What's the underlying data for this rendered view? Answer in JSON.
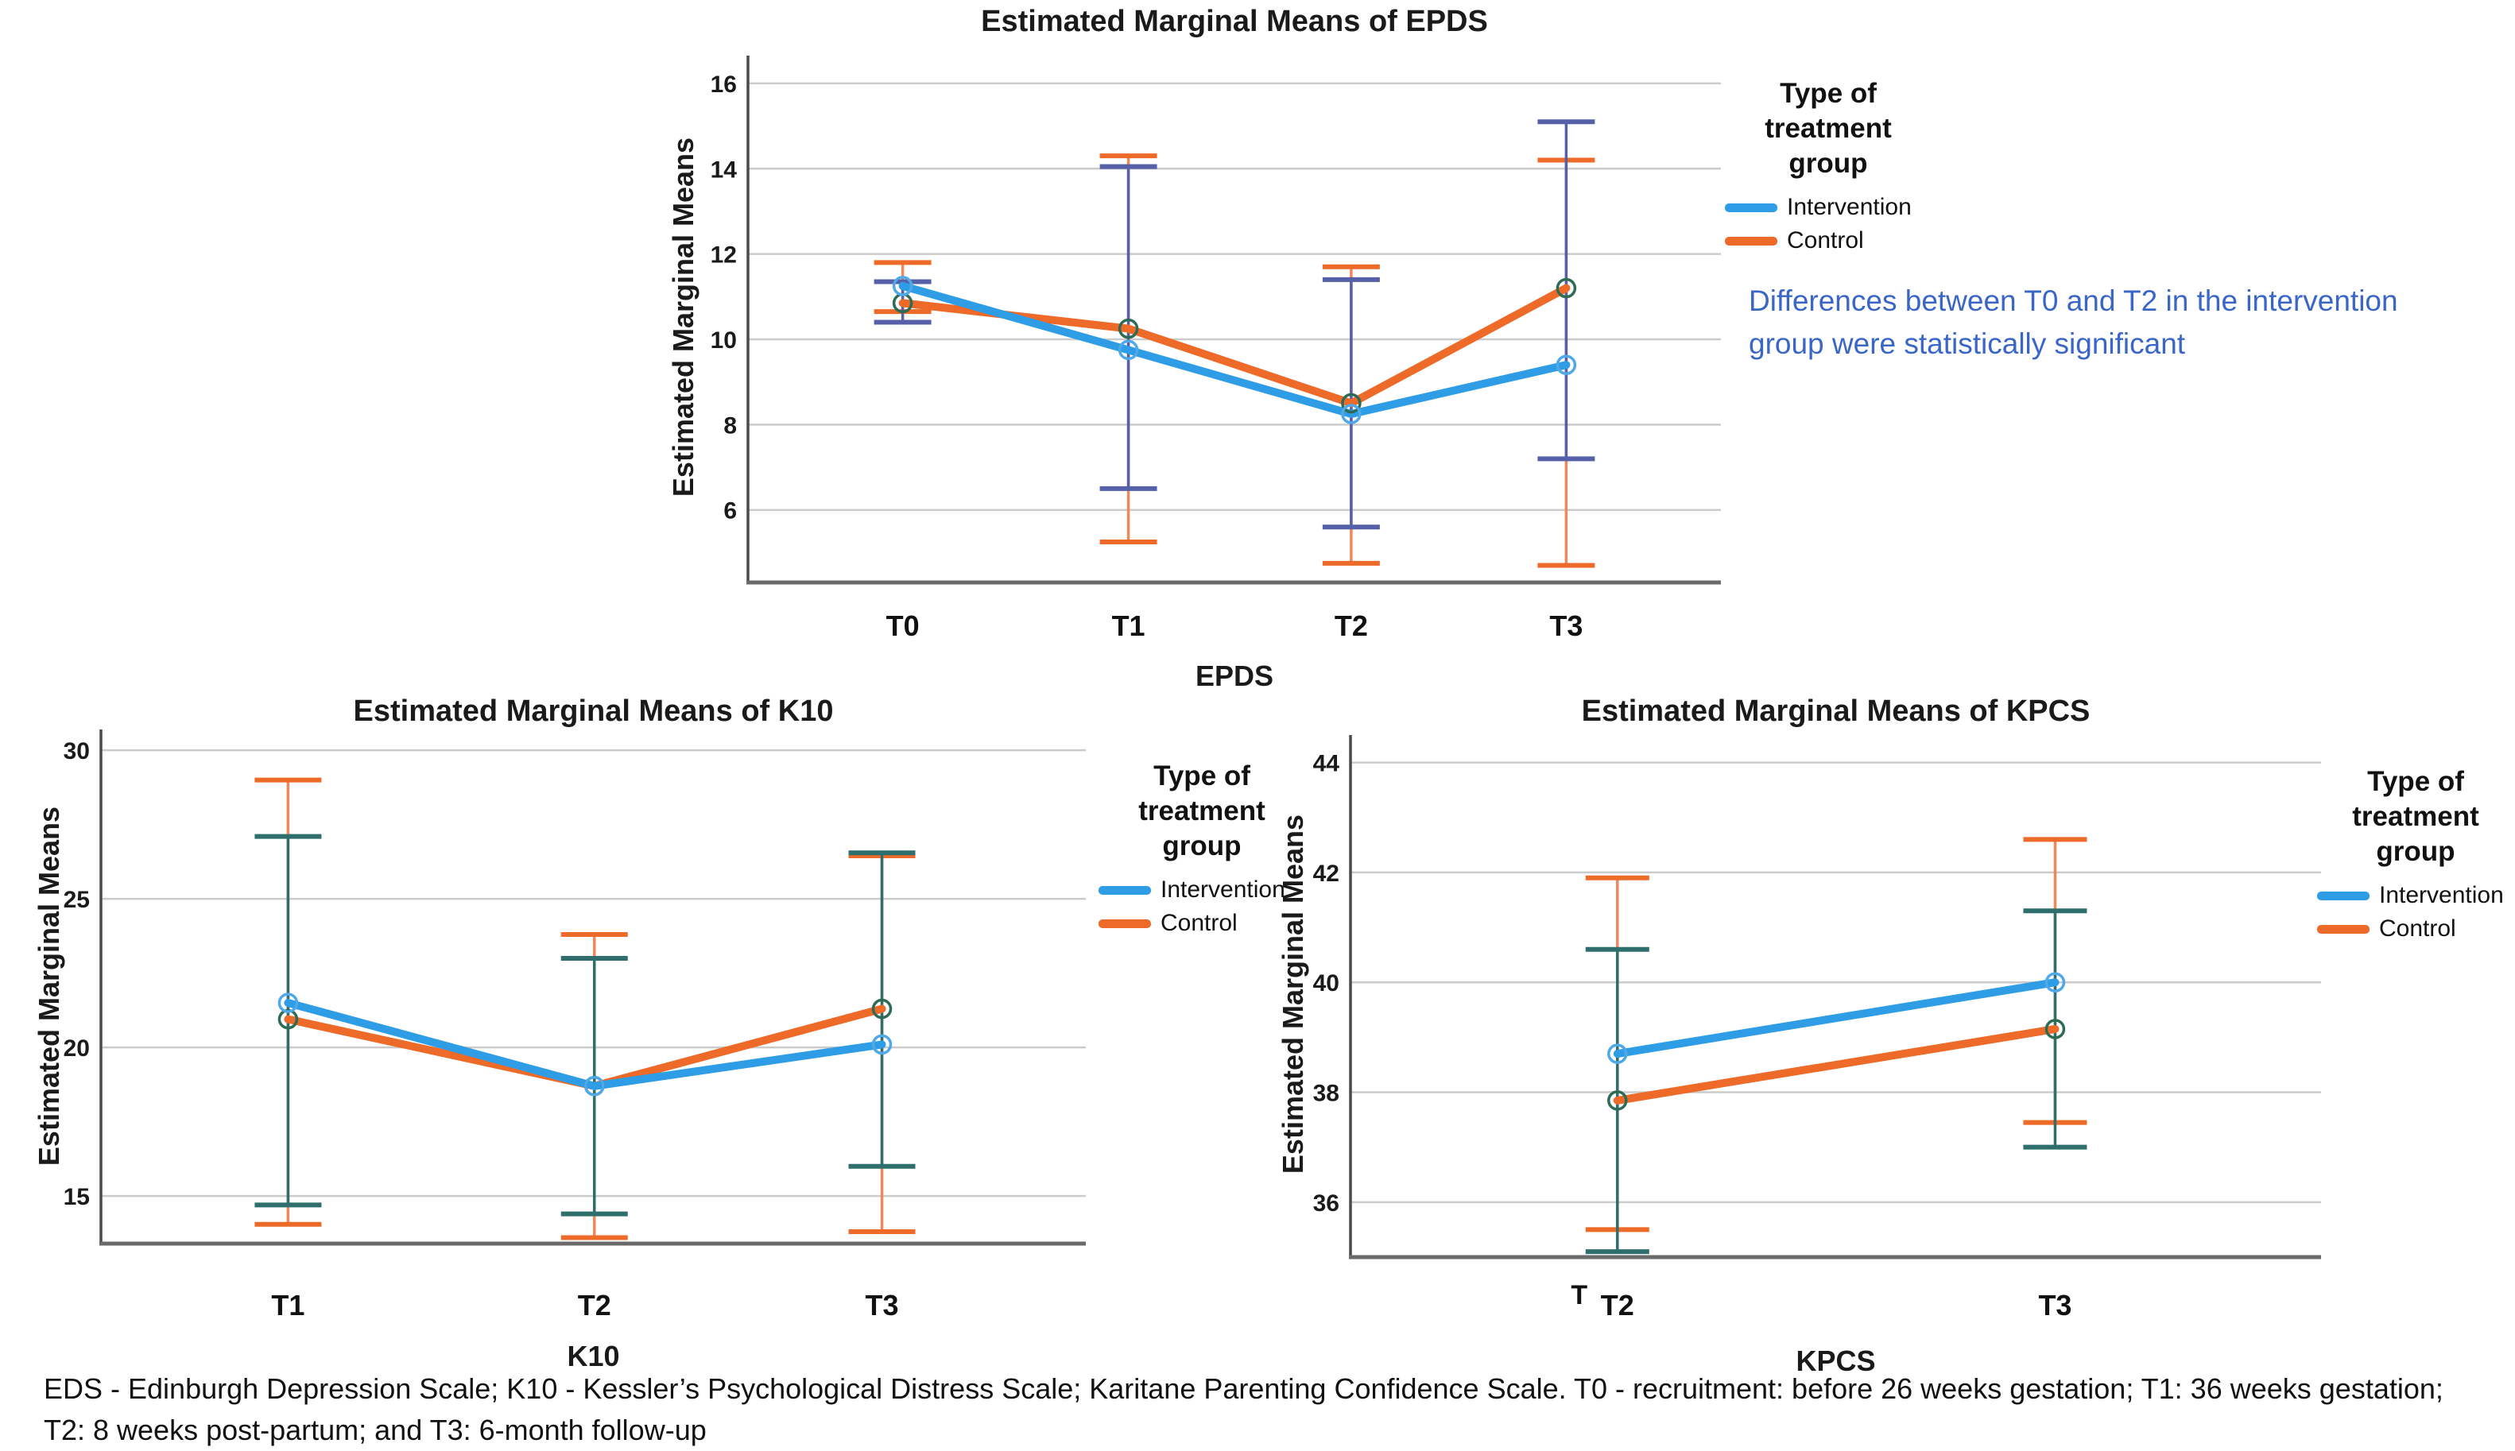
{
  "page": {
    "background": "#ffffff"
  },
  "colors": {
    "intervention": "#2E9DE5",
    "control": "#ED6A28",
    "intervention_whisker_epds": "#5560A8",
    "intervention_whisker_teal": "#2E6F6D",
    "control_whisker": "#F0885C",
    "intervention_marker_ring": "#4FA8E8",
    "control_marker_ring": "#2E6B55",
    "annotation": "#3A66C8",
    "gridline": "#CBCBCB",
    "axis": "#4A4A4A",
    "baseline_axis": "#6A6A6A"
  },
  "legend": {
    "title": "Type of treatment group",
    "items": [
      {
        "label": "Intervention",
        "color_key": "intervention"
      },
      {
        "label": "Control",
        "color_key": "control"
      }
    ]
  },
  "annotation": {
    "text": "Differences between T0 and T2 in the intervention group were statistically significant"
  },
  "footnote": {
    "line1": "EDS - Edinburgh Depression Scale; K10 - Kessler’s Psychological Distress Scale; Karitane Parenting Confidence Scale. T0 - recruitment: before 26 weeks gestation; T1: 36 weeks gestation;",
    "line2": "T2: 8 weeks post-partum; and T3: 6-month follow-up"
  },
  "chart_data": [
    {
      "id": "epds",
      "type": "line",
      "title": "Estimated Marginal Means of EPDS",
      "xlabel": "EPDS",
      "ylabel": "Estimated Marginal Means",
      "categories": [
        "T0",
        "T1",
        "T2",
        "T3"
      ],
      "yticks": [
        6,
        8,
        10,
        12,
        14,
        16
      ],
      "ylim": [
        4.3,
        16.65
      ],
      "grid": true,
      "legend_position": "right",
      "series": [
        {
          "name": "Intervention",
          "values": [
            11.25,
            9.75,
            8.25,
            9.4
          ],
          "ci_low": [
            10.4,
            6.5,
            5.6,
            7.2
          ],
          "ci_high": [
            11.35,
            14.05,
            11.4,
            15.1
          ]
        },
        {
          "name": "Control",
          "values": [
            10.85,
            10.25,
            8.5,
            11.2
          ],
          "ci_low": [
            10.65,
            5.25,
            4.75,
            4.7
          ],
          "ci_high": [
            11.8,
            14.3,
            11.7,
            14.2
          ]
        }
      ]
    },
    {
      "id": "k10",
      "type": "line",
      "title": "Estimated Marginal Means of K10",
      "xlabel": "K10",
      "ylabel": "Estimated Marginal Means",
      "categories": [
        "T1",
        "T2",
        "T3"
      ],
      "yticks": [
        15,
        20,
        25,
        30
      ],
      "ylim": [
        13.4,
        30.7
      ],
      "grid": true,
      "legend_position": "right",
      "series": [
        {
          "name": "Intervention",
          "values": [
            21.5,
            18.7,
            20.1
          ],
          "ci_low": [
            14.7,
            14.4,
            16.0
          ],
          "ci_high": [
            27.1,
            23.0,
            26.55
          ]
        },
        {
          "name": "Control",
          "values": [
            20.95,
            18.7,
            21.3
          ],
          "ci_low": [
            14.05,
            13.6,
            13.8
          ],
          "ci_high": [
            29.0,
            23.8,
            26.45
          ]
        }
      ]
    },
    {
      "id": "kpcs",
      "type": "line",
      "title": "Estimated Marginal Means of KPCS",
      "xlabel": "KPCS",
      "ylabel": "Estimated Marginal Means",
      "categories": [
        "T2",
        "T3"
      ],
      "x_axis_note": "T",
      "yticks": [
        36,
        38,
        40,
        42,
        44
      ],
      "ylim": [
        35.0,
        44.5
      ],
      "grid": true,
      "legend_position": "right",
      "series": [
        {
          "name": "Intervention",
          "values": [
            38.7,
            40.0
          ],
          "ci_low": [
            35.1,
            37.0
          ],
          "ci_high": [
            40.6,
            41.3
          ]
        },
        {
          "name": "Control",
          "values": [
            37.85,
            39.15
          ],
          "ci_low": [
            35.5,
            37.45
          ],
          "ci_high": [
            41.9,
            42.6
          ]
        }
      ]
    }
  ]
}
